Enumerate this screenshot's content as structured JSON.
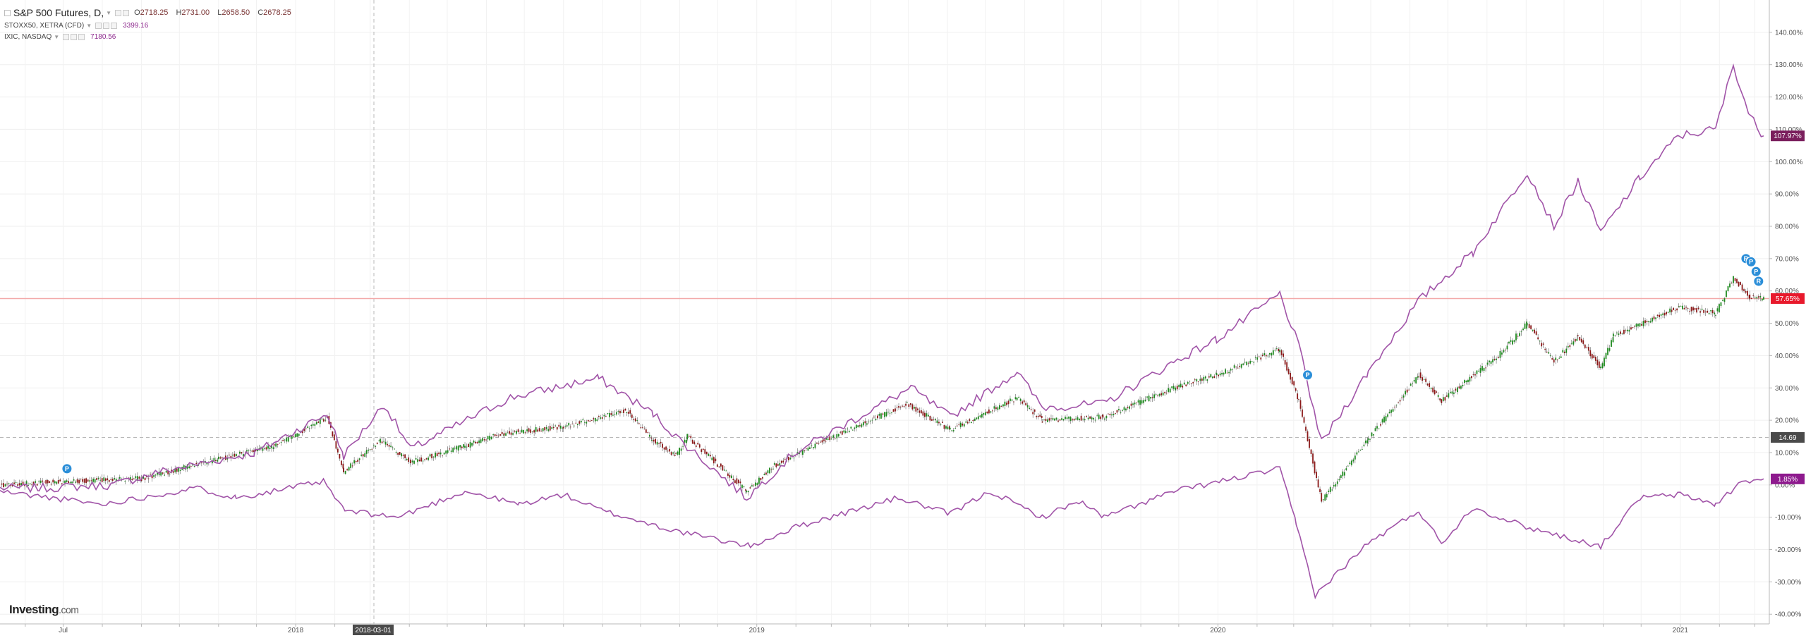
{
  "legend": {
    "main": {
      "title": "S&P 500 Futures, D,",
      "open_label": "O",
      "open": "2718.25",
      "high_label": "H",
      "high": "2731.00",
      "low_label": "L",
      "low": "2658.50",
      "close_label": "C",
      "close": "2678.25"
    },
    "series": [
      {
        "title": "STOXX50, XETRA (CFD)",
        "value": "3399.16"
      },
      {
        "title": "IXIC, NASDAQ",
        "value": "7180.56"
      }
    ]
  },
  "logo": {
    "brand": "Investing",
    "suffix": ".com"
  },
  "crosshair": {
    "date_label": "2018-03-01",
    "value_label": "14.69"
  },
  "last_labels": {
    "nasdaq": "107.97%",
    "sp500": "57.65%",
    "stoxx": "1.85%"
  },
  "colors": {
    "candle_up": "#1e8a1e",
    "candle_down": "#8b1a1a",
    "compare_line": "#a154a8",
    "last_price_line": "#f3a9a9",
    "label_red": "#e8192c",
    "label_purple": "#7a1e5c",
    "label_dark": "#4a4a4a",
    "marker": "#2b8ed8"
  },
  "chart_data": {
    "type": "line",
    "y_axis": {
      "unit": "%",
      "ylim": [
        -43,
        150
      ],
      "tick_labels": [
        "140.00%",
        "130.00%",
        "120.00%",
        "110.00%",
        "100.00%",
        "90.00%",
        "80.00%",
        "70.00%",
        "60.00%",
        "50.00%",
        "40.00%",
        "30.00%",
        "20.00%",
        "10.00%",
        "0.00%",
        "-10.00%",
        "-20.00%",
        "-30.00%",
        "-40.00%"
      ],
      "ticks": [
        140,
        130,
        120,
        110,
        100,
        90,
        80,
        70,
        60,
        50,
        40,
        30,
        20,
        10,
        0,
        -10,
        -20,
        -30,
        -40
      ]
    },
    "x_axis": {
      "start": "2017-05-12",
      "end": "2021-03-08",
      "tick_labels": [
        {
          "label": "Jul",
          "date": "2017-07-01"
        },
        {
          "label": "2018",
          "date": "2018-01-01"
        },
        {
          "label": "2019",
          "date": "2019-01-01"
        },
        {
          "label": "2020",
          "date": "2020-01-01"
        },
        {
          "label": "2021",
          "date": "2021-01-01"
        }
      ]
    },
    "grid": true,
    "series": [
      {
        "name": "S&P 500 Futures",
        "style": "candlestick",
        "points": [
          [
            "2017-05-12",
            0
          ],
          [
            "2017-07-01",
            1
          ],
          [
            "2017-09-01",
            2
          ],
          [
            "2017-11-01",
            8
          ],
          [
            "2017-12-15",
            12
          ],
          [
            "2018-01-26",
            21
          ],
          [
            "2018-02-08",
            4
          ],
          [
            "2018-03-09",
            14
          ],
          [
            "2018-04-02",
            7
          ],
          [
            "2018-05-15",
            12
          ],
          [
            "2018-06-15",
            16
          ],
          [
            "2018-08-01",
            18
          ],
          [
            "2018-09-20",
            23
          ],
          [
            "2018-10-10",
            14
          ],
          [
            "2018-10-29",
            9
          ],
          [
            "2018-11-07",
            15
          ],
          [
            "2018-12-24",
            -2
          ],
          [
            "2019-01-15",
            6
          ],
          [
            "2019-02-25",
            14
          ],
          [
            "2019-04-30",
            25
          ],
          [
            "2019-06-03",
            17
          ],
          [
            "2019-07-26",
            27
          ],
          [
            "2019-08-15",
            20
          ],
          [
            "2019-10-02",
            21
          ],
          [
            "2019-11-27",
            30
          ],
          [
            "2019-12-31",
            34
          ],
          [
            "2020-02-19",
            42
          ],
          [
            "2020-03-05",
            26
          ],
          [
            "2020-03-23",
            -5
          ],
          [
            "2020-04-29",
            14
          ],
          [
            "2020-06-08",
            34
          ],
          [
            "2020-06-26",
            26
          ],
          [
            "2020-08-10",
            40
          ],
          [
            "2020-09-02",
            50
          ],
          [
            "2020-09-23",
            38
          ],
          [
            "2020-10-12",
            46
          ],
          [
            "2020-10-30",
            36
          ],
          [
            "2020-11-09",
            46
          ],
          [
            "2020-12-31",
            55
          ],
          [
            "2021-01-29",
            53
          ],
          [
            "2021-02-12",
            64
          ],
          [
            "2021-02-25",
            58
          ],
          [
            "2021-03-08",
            57.65
          ]
        ]
      },
      {
        "name": "STOXX50, XETRA (CFD)",
        "style": "line",
        "points": [
          [
            "2017-05-12",
            -2
          ],
          [
            "2017-08-01",
            -6
          ],
          [
            "2017-10-15",
            -1
          ],
          [
            "2017-11-15",
            -4
          ],
          [
            "2018-01-23",
            1
          ],
          [
            "2018-02-09",
            -8
          ],
          [
            "2018-03-23",
            -10
          ],
          [
            "2018-05-15",
            -2
          ],
          [
            "2018-06-27",
            -6
          ],
          [
            "2018-08-01",
            -3
          ],
          [
            "2018-09-01",
            -8
          ],
          [
            "2018-10-26",
            -14
          ],
          [
            "2018-12-27",
            -19
          ],
          [
            "2019-02-01",
            -13
          ],
          [
            "2019-04-23",
            -4
          ],
          [
            "2019-06-03",
            -9
          ],
          [
            "2019-07-05",
            -2
          ],
          [
            "2019-08-15",
            -10
          ],
          [
            "2019-09-13",
            -5
          ],
          [
            "2019-10-03",
            -10
          ],
          [
            "2019-11-27",
            -2
          ],
          [
            "2020-02-19",
            5
          ],
          [
            "2020-03-03",
            -12
          ],
          [
            "2020-03-18",
            -34
          ],
          [
            "2020-04-29",
            -18
          ],
          [
            "2020-06-08",
            -8
          ],
          [
            "2020-06-26",
            -18
          ],
          [
            "2020-07-21",
            -7
          ],
          [
            "2020-09-01",
            -13
          ],
          [
            "2020-10-30",
            -19
          ],
          [
            "2020-11-30",
            -4
          ],
          [
            "2021-01-01",
            -3
          ],
          [
            "2021-01-29",
            -6
          ],
          [
            "2021-02-19",
            1
          ],
          [
            "2021-03-08",
            1.85
          ]
        ]
      },
      {
        "name": "IXIC, NASDAQ",
        "style": "line",
        "points": [
          [
            "2017-05-12",
            -1
          ],
          [
            "2017-06-12",
            -1
          ],
          [
            "2017-08-10",
            0
          ],
          [
            "2017-09-15",
            4
          ],
          [
            "2017-11-30",
            10
          ],
          [
            "2018-01-26",
            22
          ],
          [
            "2018-02-08",
            9
          ],
          [
            "2018-03-12",
            25
          ],
          [
            "2018-04-02",
            11
          ],
          [
            "2018-06-20",
            27
          ],
          [
            "2018-08-29",
            33
          ],
          [
            "2018-10-11",
            22
          ],
          [
            "2018-10-29",
            15
          ],
          [
            "2018-12-24",
            -4
          ],
          [
            "2019-01-31",
            10
          ],
          [
            "2019-05-03",
            30
          ],
          [
            "2019-06-03",
            21
          ],
          [
            "2019-07-26",
            35
          ],
          [
            "2019-08-15",
            24
          ],
          [
            "2019-10-02",
            25
          ],
          [
            "2019-11-27",
            38
          ],
          [
            "2019-12-31",
            45
          ],
          [
            "2020-02-19",
            59
          ],
          [
            "2020-03-05",
            43
          ],
          [
            "2020-03-23",
            13
          ],
          [
            "2020-04-29",
            35
          ],
          [
            "2020-06-08",
            57
          ],
          [
            "2020-07-21",
            72
          ],
          [
            "2020-09-02",
            97
          ],
          [
            "2020-09-23",
            80
          ],
          [
            "2020-10-12",
            94
          ],
          [
            "2020-10-30",
            78
          ],
          [
            "2020-11-30",
            95
          ],
          [
            "2020-12-31",
            108
          ],
          [
            "2021-01-29",
            110
          ],
          [
            "2021-02-12",
            130
          ],
          [
            "2021-02-25",
            114
          ],
          [
            "2021-03-08",
            107.97
          ]
        ]
      }
    ],
    "markers": [
      {
        "date": "2017-07-04",
        "y": 5,
        "label": "P"
      },
      {
        "date": "2020-03-12",
        "y": 34,
        "label": "P"
      },
      {
        "date": "2021-02-22",
        "y": 70,
        "label": "R"
      },
      {
        "date": "2021-02-26",
        "y": 69,
        "label": "P"
      },
      {
        "date": "2021-03-02",
        "y": 66,
        "label": "P"
      },
      {
        "date": "2021-03-04",
        "y": 63,
        "label": "R"
      }
    ]
  }
}
